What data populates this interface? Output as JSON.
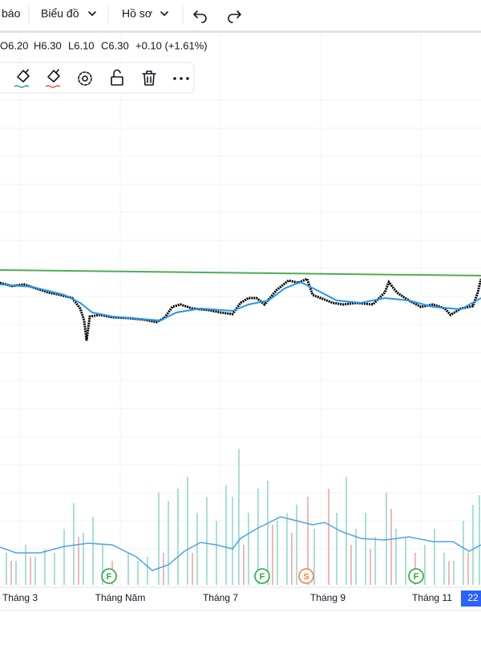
{
  "toolbar": {
    "items": [
      "báo",
      "Biểu đồ",
      "Hồ sơ"
    ]
  },
  "legend": {
    "open": "O6.20",
    "high": "H6.30",
    "low": "L6.10",
    "close": "C6.30",
    "change": "+0.10 (+1.61%)"
  },
  "events": [
    {
      "label": "F"
    },
    {
      "label": "F"
    },
    {
      "label": "S"
    },
    {
      "label": "F"
    }
  ],
  "time_axis": {
    "labels": [
      "Tháng 3",
      "Tháng Năm",
      "Tháng 7",
      "Tháng 9",
      "Tháng 11"
    ],
    "current": "22"
  }
}
